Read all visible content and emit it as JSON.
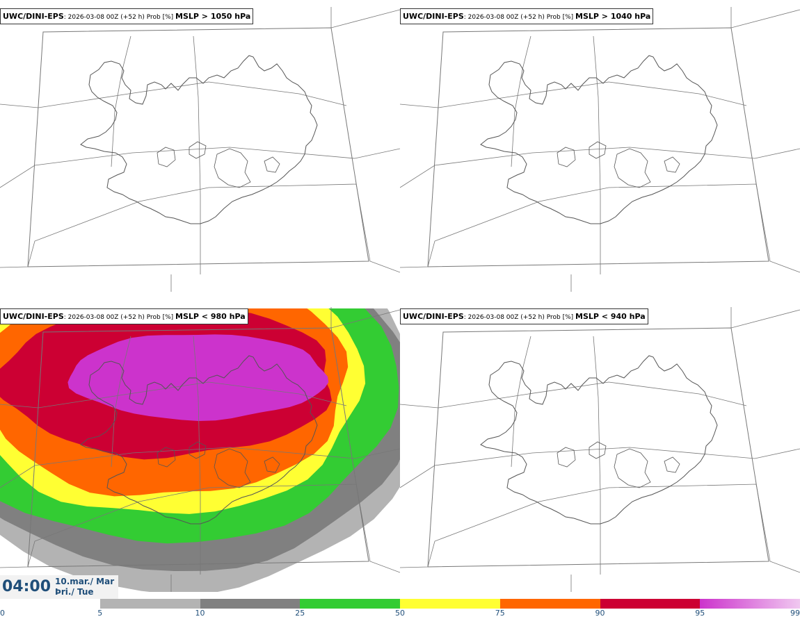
{
  "panels": [
    {
      "source": "UWC/DINI-EPS",
      "meta": ": 2026-03-08 00Z (+52 h) Prob [%] ",
      "variable": "MSLP > 1050 hPa",
      "has_field": false
    },
    {
      "source": "UWC/DINI-EPS",
      "meta": ": 2026-03-08 00Z (+52 h) Prob [%] ",
      "variable": "MSLP > 1040 hPa",
      "has_field": false
    },
    {
      "source": "UWC/DINI-EPS",
      "meta": ": 2026-03-08 00Z (+52 h) Prob [%] ",
      "variable": "MSLP < 980 hPa",
      "has_field": true
    },
    {
      "source": "UWC/DINI-EPS",
      "meta": ": 2026-03-08 00Z (+52 h) Prob [%] ",
      "variable": "MSLP < 940 hPa",
      "has_field": false
    }
  ],
  "valid_time": {
    "time": "04:00",
    "date_line1": "10.mar./ Mar",
    "date_line2": "Þri./ Tue"
  },
  "colorbar": {
    "ticks": [
      "0",
      "5",
      "10",
      "25",
      "50",
      "75",
      "90",
      "95",
      "99"
    ],
    "segments": [
      {
        "from": "0",
        "to": "5",
        "color": "#ffffff"
      },
      {
        "from": "5",
        "to": "10",
        "color": "#b3b3b3"
      },
      {
        "from": "10",
        "to": "25",
        "color": "#808080"
      },
      {
        "from": "25",
        "to": "50",
        "color": "#33cc33"
      },
      {
        "from": "50",
        "to": "75",
        "color": "#ffff33"
      },
      {
        "from": "75",
        "to": "90",
        "color": "#ff6600"
      },
      {
        "from": "90",
        "to": "95",
        "color": "#cc0033"
      },
      {
        "from": "95",
        "to": "99",
        "color": "gradient",
        "start_color": "#cc33cc",
        "end_color": "#f0c8f0"
      }
    ]
  },
  "map_colors": {
    "coast": "#555555",
    "grid": "#777777"
  }
}
